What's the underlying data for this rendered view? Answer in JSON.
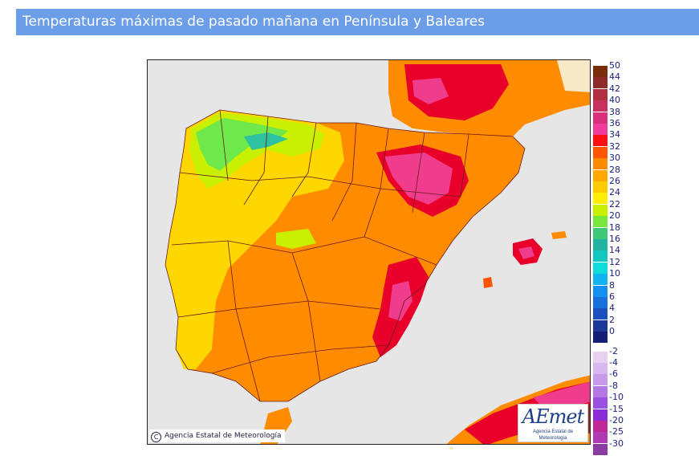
{
  "page": {
    "title": "Temperaturas máximas de pasado mañana en Península y Baleares"
  },
  "map": {
    "copyright": "Agencia Estatal de Meteorología",
    "copyright_icon": "copyright-icon",
    "logo": {
      "word": "AEmet",
      "subtitle": "Agencia Estatal de Meteorología"
    },
    "sea_color": "#e6e6e6",
    "france_color": "#f7e8c8",
    "region_colors": {
      "hot_34": "#e8002a",
      "hot_36": "#f03c8c",
      "warm_32": "#f25c05",
      "warm_30": "#ff8c00",
      "mild_28": "#ffaa00",
      "mild_26": "#ffd700",
      "cool_24": "#ffe800",
      "cool_22": "#c8f000",
      "cool_20": "#6ee84a",
      "cool_18": "#2ec2a0",
      "border": "#6a1a1a"
    }
  },
  "legend": [
    {
      "label": "50",
      "color": "#7a2e10"
    },
    {
      "label": "44",
      "color": "#8f2a2a"
    },
    {
      "label": "42",
      "color": "#b03040"
    },
    {
      "label": "40",
      "color": "#c83060"
    },
    {
      "label": "38",
      "color": "#d8307a"
    },
    {
      "label": "36",
      "color": "#f03c9c"
    },
    {
      "label": "34",
      "color": "#ff1010"
    },
    {
      "label": "32",
      "color": "#ff5500"
    },
    {
      "label": "30",
      "color": "#ff8a00"
    },
    {
      "label": "28",
      "color": "#ffa800"
    },
    {
      "label": "26",
      "color": "#ffcc00"
    },
    {
      "label": "24",
      "color": "#ffee00"
    },
    {
      "label": "22",
      "color": "#c8f000"
    },
    {
      "label": "20",
      "color": "#78e63c"
    },
    {
      "label": "18",
      "color": "#3cc878"
    },
    {
      "label": "16",
      "color": "#20b4a0"
    },
    {
      "label": "14",
      "color": "#10c8c0"
    },
    {
      "label": "12",
      "color": "#10dcdc"
    },
    {
      "label": "10",
      "color": "#10b4f0"
    },
    {
      "label": "8",
      "color": "#1490f0"
    },
    {
      "label": "6",
      "color": "#1870dc"
    },
    {
      "label": "4",
      "color": "#1c50c0"
    },
    {
      "label": "2",
      "color": "#1c3898"
    },
    {
      "label": "0",
      "color": "#141e78"
    },
    {
      "label": "-2",
      "color": "#e8d0f0"
    },
    {
      "label": "-4",
      "color": "#d8b8ee"
    },
    {
      "label": "-6",
      "color": "#c89ae8"
    },
    {
      "label": "-8",
      "color": "#b478e4"
    },
    {
      "label": "-10",
      "color": "#9a50e0"
    },
    {
      "label": "-15",
      "color": "#8c2cd8"
    },
    {
      "label": "-20",
      "color": "#c02898"
    },
    {
      "label": "-25",
      "color": "#b03cb4"
    },
    {
      "label": "-30",
      "color": "#8c3ca0"
    }
  ]
}
